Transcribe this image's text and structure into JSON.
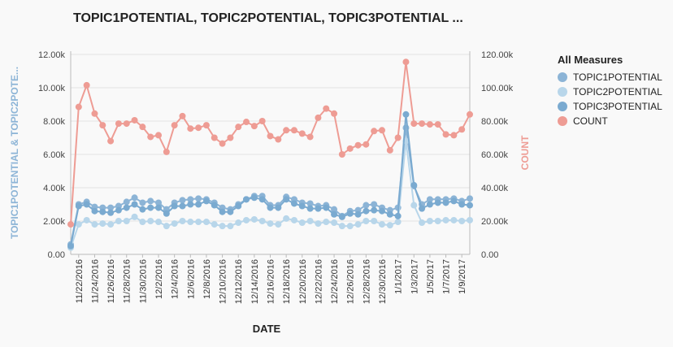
{
  "chart_data": {
    "type": "line",
    "title": "TOPIC1POTENTIAL, TOPIC2POTENTIAL, TOPIC3POTENTIAL ...",
    "xlabel": "DATE",
    "ylabel_left": "TOPIC1POTENTIAL & TOPIC2POTE...",
    "ylabel_right": "COUNT",
    "left_ylim": [
      0,
      12000
    ],
    "right_ylim": [
      0,
      120000
    ],
    "left_ticks": [
      "0.00",
      "2.00k",
      "4.00k",
      "6.00k",
      "8.00k",
      "10.00k",
      "12.00k"
    ],
    "right_ticks": [
      "0.00",
      "20.00k",
      "40.00k",
      "60.00k",
      "80.00k",
      "100.00k",
      "120.00k"
    ],
    "x_tick_labels": [
      "11/22/2016",
      "11/24/2016",
      "11/26/2016",
      "11/28/2016",
      "11/30/2016",
      "12/2/2016",
      "12/4/2016",
      "12/6/2016",
      "12/8/2016",
      "12/10/2016",
      "12/12/2016",
      "12/14/2016",
      "12/16/2016",
      "12/18/2016",
      "12/20/2016",
      "12/22/2016",
      "12/24/2016",
      "12/26/2016",
      "12/28/2016",
      "12/30/2016",
      "1/1/2017",
      "1/3/2017",
      "1/5/2017",
      "1/7/2017",
      "1/9/2017"
    ],
    "x": [
      "11/21/2016",
      "11/22/2016",
      "11/23/2016",
      "11/24/2016",
      "11/25/2016",
      "11/26/2016",
      "11/27/2016",
      "11/28/2016",
      "11/29/2016",
      "11/30/2016",
      "12/1/2016",
      "12/2/2016",
      "12/3/2016",
      "12/4/2016",
      "12/5/2016",
      "12/6/2016",
      "12/7/2016",
      "12/8/2016",
      "12/9/2016",
      "12/10/2016",
      "12/11/2016",
      "12/12/2016",
      "12/13/2016",
      "12/14/2016",
      "12/15/2016",
      "12/16/2016",
      "12/17/2016",
      "12/18/2016",
      "12/19/2016",
      "12/20/2016",
      "12/21/2016",
      "12/22/2016",
      "12/23/2016",
      "12/24/2016",
      "12/25/2016",
      "12/26/2016",
      "12/27/2016",
      "12/28/2016",
      "12/29/2016",
      "12/30/2016",
      "12/31/2016",
      "1/1/2017",
      "1/2/2017",
      "1/3/2017",
      "1/4/2017",
      "1/5/2017",
      "1/6/2017",
      "1/7/2017",
      "1/8/2017",
      "1/9/2017",
      "1/10/2017"
    ],
    "grid": true,
    "legend_position": "right",
    "legend_title": "All Measures",
    "series": [
      {
        "name": "TOPIC1POTENTIAL",
        "axis": "left",
        "color": "#8cb4d6",
        "values": [
          600,
          3000,
          3150,
          2850,
          2800,
          2800,
          2900,
          3150,
          3400,
          3100,
          3200,
          3100,
          2700,
          3100,
          3250,
          3300,
          3350,
          3300,
          3100,
          2800,
          2700,
          3000,
          3300,
          3500,
          3500,
          2950,
          2950,
          3450,
          3300,
          3100,
          3050,
          2900,
          2950,
          2700,
          2300,
          2600,
          2650,
          2950,
          3000,
          2800,
          2650,
          2800,
          7600,
          4100,
          3000,
          3300,
          3300,
          3300,
          3350,
          3200,
          3350
        ]
      },
      {
        "name": "TOPIC2POTENTIAL",
        "axis": "left",
        "color": "#b8d6ea",
        "values": [
          400,
          1800,
          2050,
          1800,
          1850,
          1800,
          2000,
          2000,
          2250,
          1950,
          2000,
          1950,
          1700,
          1850,
          2000,
          1950,
          1950,
          1950,
          1800,
          1700,
          1700,
          1900,
          2050,
          2100,
          2000,
          1850,
          1800,
          2150,
          2050,
          1900,
          2000,
          1850,
          1950,
          1900,
          1700,
          1700,
          1800,
          2000,
          2000,
          1800,
          1750,
          1950,
          6800,
          2950,
          1900,
          2000,
          2000,
          2050,
          2050,
          2000,
          2050
        ]
      },
      {
        "name": "TOPIC3POTENTIAL",
        "axis": "left",
        "color": "#7aaad0",
        "values": [
          500,
          2900,
          3000,
          2600,
          2550,
          2500,
          2650,
          2800,
          3000,
          2700,
          2800,
          2800,
          2450,
          2900,
          2900,
          3000,
          3000,
          3200,
          2950,
          2550,
          2550,
          2900,
          3300,
          3400,
          3300,
          2800,
          2800,
          3300,
          3050,
          2900,
          2750,
          2750,
          2800,
          2400,
          2250,
          2450,
          2400,
          2600,
          2650,
          2600,
          2400,
          2300,
          8400,
          4150,
          2750,
          3000,
          3100,
          3100,
          3200,
          3000,
          2950
        ]
      },
      {
        "name": "COUNT",
        "axis": "right",
        "color": "#ee9c94",
        "values": [
          18000,
          88500,
          101500,
          84500,
          77500,
          68000,
          78500,
          78500,
          80500,
          76500,
          70500,
          71500,
          61500,
          77500,
          83000,
          75500,
          76000,
          77500,
          70000,
          66500,
          70000,
          76500,
          79500,
          77000,
          80000,
          71000,
          69000,
          74500,
          74500,
          72500,
          70500,
          82000,
          87500,
          84500,
          60000,
          63500,
          65500,
          66000,
          74000,
          74500,
          62500,
          70000,
          115500,
          78500,
          78500,
          78000,
          78000,
          72000,
          71500,
          75000,
          84000
        ]
      }
    ]
  }
}
